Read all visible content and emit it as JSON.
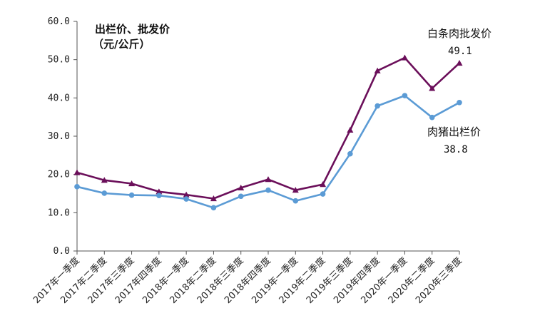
{
  "chart_data": {
    "type": "line",
    "ylabel_line1": "出栏价、批发价",
    "ylabel_line2": "（元/公斤）",
    "ylim": [
      0,
      60
    ],
    "yticks": [
      "0.0",
      "10.0",
      "20.0",
      "30.0",
      "40.0",
      "50.0",
      "60.0"
    ],
    "grid": false,
    "categories": [
      "2017年一季度",
      "2017年二季度",
      "2017年三季度",
      "2017年四季度",
      "2018年一季度",
      "2018年二季度",
      "2018年三季度",
      "2018年四季度",
      "2019年一季度",
      "2019年二季度",
      "2019年三季度",
      "2019年四季度",
      "2020年一季度",
      "2020年二季度",
      "2020年三季度"
    ],
    "series": [
      {
        "name": "白条肉批发价",
        "label_value": "49.1",
        "color": "#6b0f5a",
        "marker": "triangle",
        "values": [
          20.5,
          18.5,
          17.6,
          15.5,
          14.7,
          13.7,
          16.5,
          18.7,
          15.9,
          17.4,
          31.6,
          47.1,
          50.5,
          42.5,
          49.1
        ]
      },
      {
        "name": "肉猪出栏价",
        "label_value": "38.8",
        "color": "#5b9bd5",
        "marker": "circle",
        "values": [
          16.8,
          15.1,
          14.6,
          14.5,
          13.6,
          11.3,
          14.3,
          15.9,
          13.1,
          14.9,
          25.4,
          37.9,
          40.6,
          34.9,
          38.8
        ]
      }
    ]
  }
}
